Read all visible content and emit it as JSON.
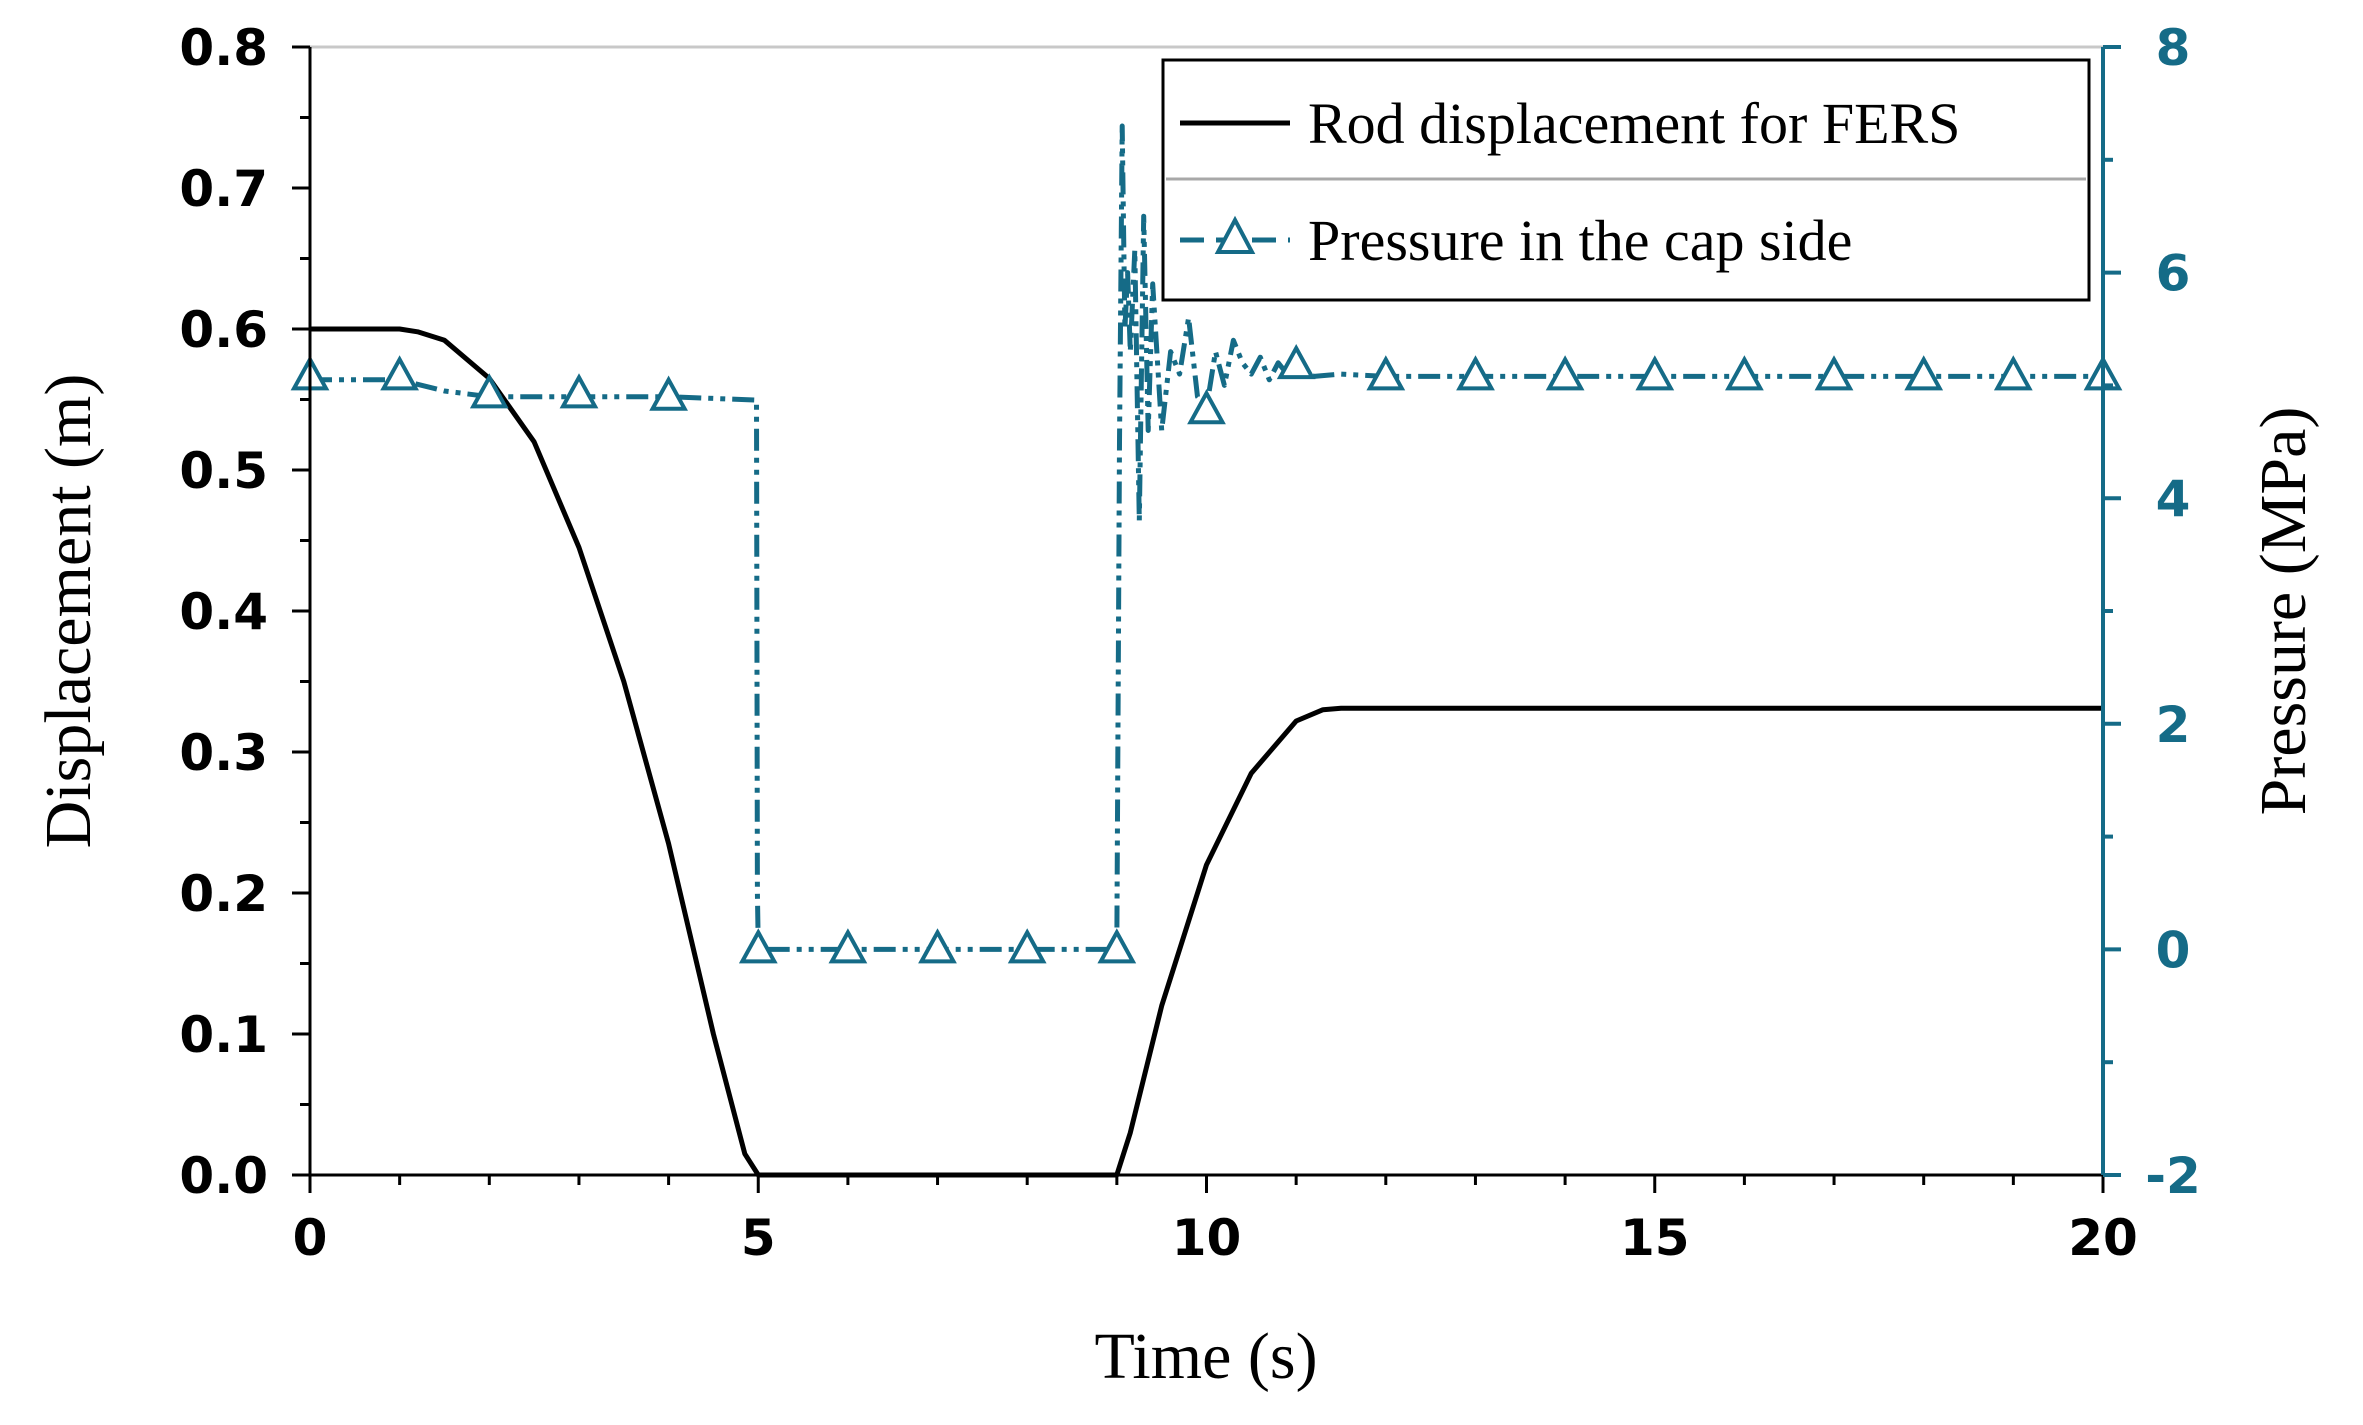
{
  "chart_data": {
    "type": "line",
    "title": "",
    "xlabel": "Time (s)",
    "ylabel": "Displacement (m)",
    "y2label": "Pressure (MPa)",
    "xlim": [
      0,
      20
    ],
    "ylim": [
      0,
      0.8
    ],
    "y2lim": [
      -2,
      8
    ],
    "x_ticks": [
      "0",
      "5",
      "10",
      "15",
      "20"
    ],
    "y_ticks": [
      "0.0",
      "0.1",
      "0.2",
      "0.3",
      "0.4",
      "0.5",
      "0.6",
      "0.7",
      "0.8"
    ],
    "y2_ticks": [
      "-2",
      "0",
      "2",
      "4",
      "6",
      "8"
    ],
    "colors": {
      "displacement": "#000000",
      "pressure": "#156b87",
      "frame": "#000000",
      "legend_divider": "#a8a8a8"
    },
    "legend_placement": "top-right",
    "series": [
      {
        "name": "Rod displacement for FERS",
        "axis": "left",
        "style": "solid",
        "x": [
          0,
          1,
          1.2,
          1.5,
          2,
          2.5,
          3,
          3.5,
          4,
          4.5,
          4.85,
          5,
          9,
          9.15,
          9.5,
          10,
          10.5,
          11,
          11.3,
          11.5,
          12,
          20
        ],
        "y": [
          0.6,
          0.6,
          0.598,
          0.592,
          0.565,
          0.52,
          0.445,
          0.35,
          0.235,
          0.1,
          0.015,
          0,
          0,
          0.03,
          0.12,
          0.22,
          0.285,
          0.322,
          0.33,
          0.331,
          0.331,
          0.331
        ]
      },
      {
        "name": "Pressure in the cap side",
        "axis": "right",
        "style": "dash-dot-dot",
        "marker": "triangle",
        "x": [
          0,
          1,
          1.5,
          2,
          3,
          4,
          4.98,
          4.99,
          5,
          6,
          7,
          8,
          9,
          9.03,
          9.06,
          9.09,
          9.12,
          9.15,
          9.2,
          9.25,
          9.3,
          9.35,
          9.4,
          9.5,
          9.6,
          9.7,
          9.8,
          9.9,
          10,
          10.1,
          10.2,
          10.3,
          10.4,
          10.5,
          10.6,
          10.7,
          10.8,
          10.9,
          11,
          11.2,
          11.5,
          12,
          13,
          14,
          15,
          16,
          17,
          18,
          19,
          20
        ],
        "y": [
          5.05,
          5.05,
          4.95,
          4.9,
          4.9,
          4.9,
          4.87,
          0.5,
          0,
          0,
          0,
          0,
          0,
          4.5,
          7.3,
          5.5,
          6.0,
          5.3,
          6.2,
          3.8,
          6.5,
          4.6,
          5.9,
          4.6,
          5.3,
          5.1,
          5.6,
          4.9,
          4.8,
          5.3,
          5.0,
          5.4,
          5.2,
          5.1,
          5.25,
          5.05,
          5.2,
          5.1,
          5.15,
          5.08,
          5.1,
          5.08,
          5.08,
          5.08,
          5.08,
          5.08,
          5.08,
          5.08,
          5.08,
          5.08
        ],
        "marker_x": [
          0,
          1,
          2,
          3,
          4,
          5,
          6,
          7,
          8,
          9,
          10,
          11,
          12,
          13,
          14,
          15,
          16,
          17,
          18,
          19,
          20
        ],
        "marker_y": [
          5.08,
          5.08,
          4.92,
          4.92,
          4.9,
          0,
          0,
          0,
          0,
          0,
          4.78,
          5.18,
          5.08,
          5.08,
          5.08,
          5.08,
          5.08,
          5.08,
          5.08,
          5.08,
          5.08
        ]
      }
    ]
  }
}
